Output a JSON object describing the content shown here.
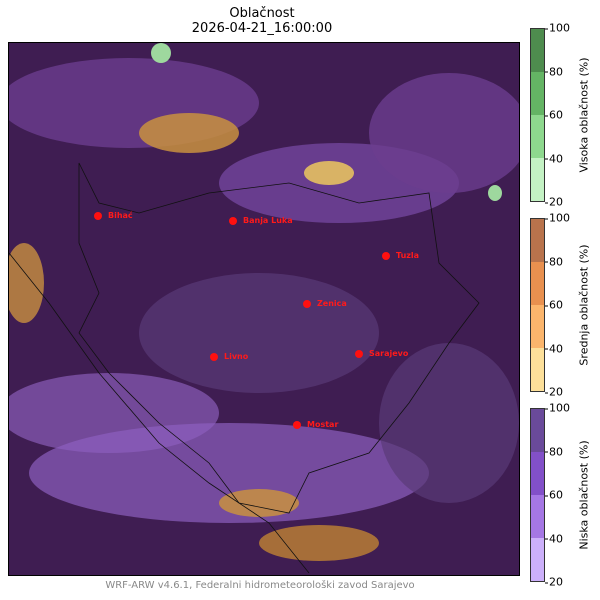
{
  "title": "Oblačnost",
  "datetime": "2026-04-21_16:00:00",
  "footer": "WRF-ARW v4.6.1, Federalni hidrometeorološki zavod Sarajevo",
  "cities": [
    {
      "name": "Bihać"
    },
    {
      "name": "Banja Luka"
    },
    {
      "name": "Tuzla"
    },
    {
      "name": "Zenica"
    },
    {
      "name": "Livno"
    },
    {
      "name": "Sarajevo"
    },
    {
      "name": "Mostar"
    }
  ],
  "colorbars": [
    {
      "label": "Visoka oblačnost (%)",
      "ticks": [
        "100",
        "80",
        "60",
        "40",
        "20"
      ],
      "colors": [
        "#4e8c4e",
        "#64b464",
        "#8ed88e",
        "#c4f2c4"
      ]
    },
    {
      "label": "Srednja oblačnost (%)",
      "ticks": [
        "100",
        "80",
        "60",
        "40",
        "20"
      ],
      "colors": [
        "#b8734c",
        "#e8904f",
        "#fbb56c",
        "#fde09a"
      ]
    },
    {
      "label": "Niska oblačnost (%)",
      "ticks": [
        "100",
        "80",
        "60",
        "40",
        "20"
      ],
      "colors": [
        "#6a4a9a",
        "#8250c8",
        "#a577e4",
        "#ccb0fa"
      ]
    }
  ]
}
